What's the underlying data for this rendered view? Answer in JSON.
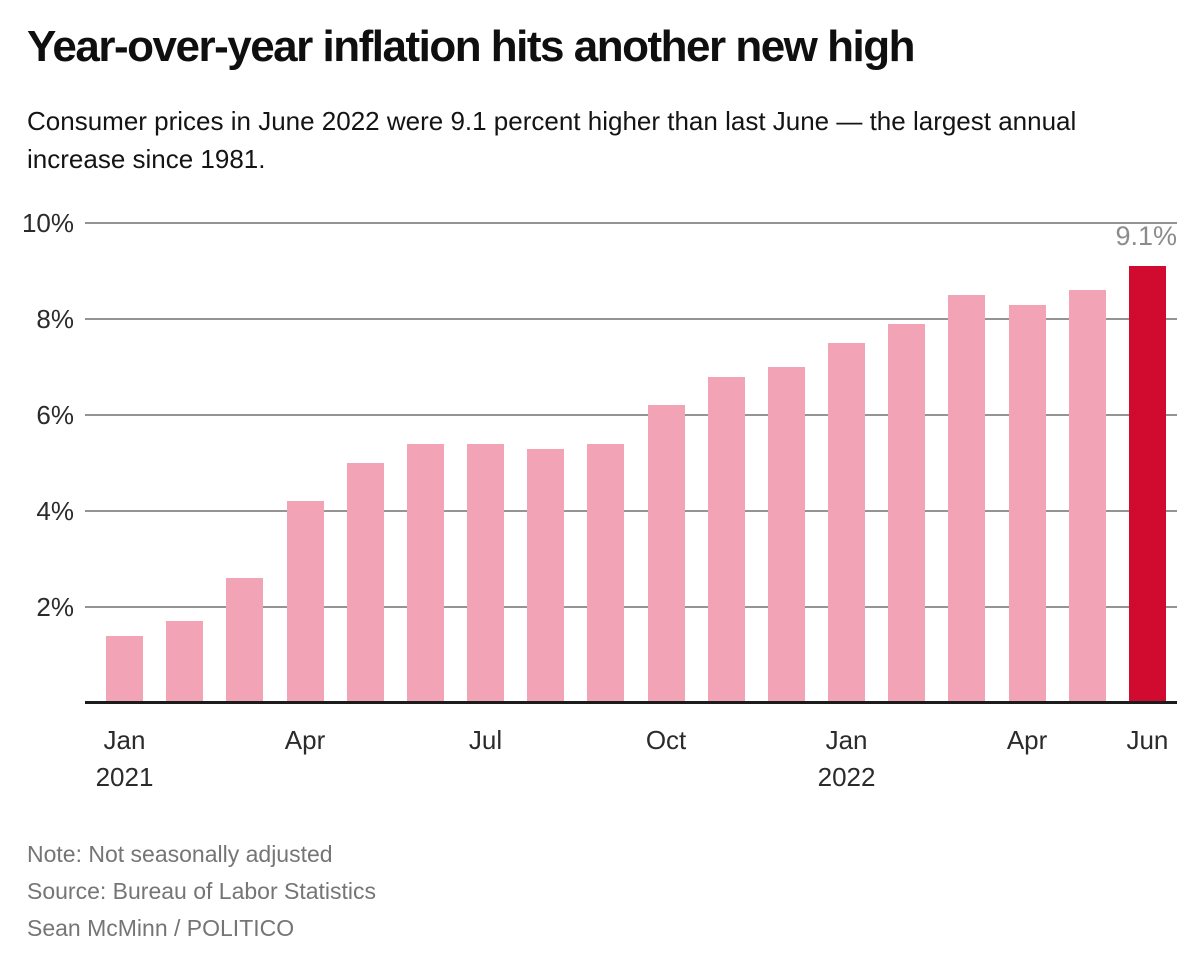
{
  "header": {
    "title": "Year-over-year inflation hits another new high",
    "subtitle": "Consumer prices in June 2022 were 9.1 percent higher than last June — the largest annual increase since 1981."
  },
  "chart_data": {
    "type": "bar",
    "title": "Year-over-year inflation hits another new high",
    "subtitle": "Consumer prices in June 2022 were 9.1 percent higher than last June — the largest annual increase since 1981.",
    "unit": "%",
    "categories": [
      "Jan 2021",
      "Feb 2021",
      "Mar 2021",
      "Apr 2021",
      "May 2021",
      "Jun 2021",
      "Jul 2021",
      "Aug 2021",
      "Sep 2021",
      "Oct 2021",
      "Nov 2021",
      "Dec 2021",
      "Jan 2022",
      "Feb 2022",
      "Mar 2022",
      "Apr 2022",
      "May 2022",
      "Jun 2022"
    ],
    "values": [
      1.4,
      1.7,
      2.6,
      4.2,
      5.0,
      5.4,
      5.4,
      5.3,
      5.4,
      6.2,
      6.8,
      7.0,
      7.5,
      7.9,
      8.5,
      8.3,
      8.6,
      9.1
    ],
    "highlight_index": 17,
    "ylim": [
      0,
      10
    ],
    "grid": true,
    "legend": "none",
    "yticks": [
      {
        "value": 2,
        "label": "2%"
      },
      {
        "value": 4,
        "label": "4%"
      },
      {
        "value": 6,
        "label": "6%"
      },
      {
        "value": 8,
        "label": "8%"
      },
      {
        "value": 10,
        "label": "10%"
      }
    ],
    "x_ticks": [
      {
        "index": 0,
        "label": "Jan",
        "year": "2021"
      },
      {
        "index": 3,
        "label": "Apr"
      },
      {
        "index": 6,
        "label": "Jul"
      },
      {
        "index": 9,
        "label": "Oct"
      },
      {
        "index": 12,
        "label": "Jan",
        "year": "2022"
      },
      {
        "index": 15,
        "label": "Apr"
      },
      {
        "index": 17,
        "label": "Jun"
      }
    ],
    "annotation": {
      "text": "9.1%",
      "index": 17
    },
    "colors": {
      "bar": "#f2a4b6",
      "highlight": "#d00b2f",
      "gridline": "#949494",
      "axis": "#1c1c1c"
    }
  },
  "footer": {
    "note": "Note: Not seasonally adjusted",
    "source": "Source: Bureau of Labor Statistics",
    "byline": "Sean McMinn / POLITICO"
  }
}
